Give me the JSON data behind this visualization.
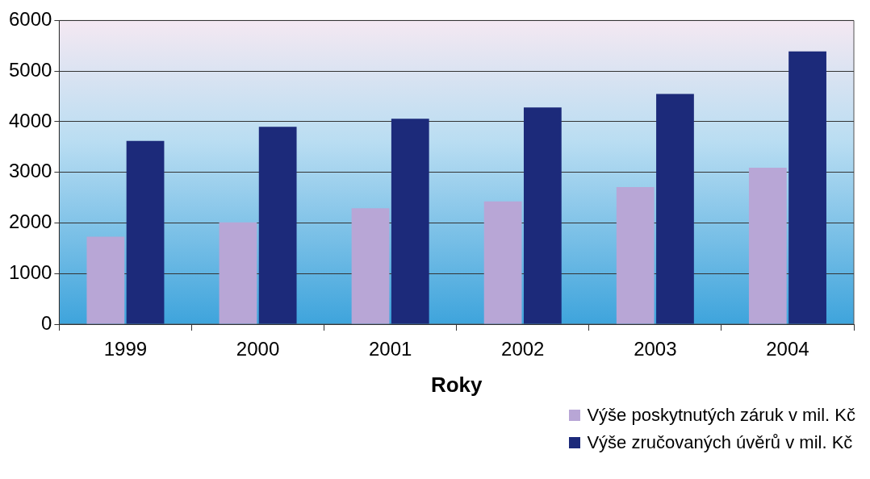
{
  "chart_data": {
    "type": "bar",
    "xlabel": "Roky",
    "categories": [
      "1999",
      "2000",
      "2001",
      "2002",
      "2003",
      "2004"
    ],
    "series": [
      {
        "name": "Výše poskytnutých záruk v mil. Kč",
        "color": "#b8a6d6",
        "values": [
          1730,
          2010,
          2290,
          2425,
          2710,
          3090
        ]
      },
      {
        "name": "Výše zručovaných úvěrů v mil. Kč",
        "color": "#1c2a7a",
        "values": [
          3620,
          3900,
          4060,
          4280,
          4550,
          5390
        ]
      }
    ],
    "ylim": [
      0,
      6000
    ],
    "yticks": [
      0,
      1000,
      2000,
      3000,
      4000,
      5000,
      6000
    ],
    "grid": "y",
    "legend": "bottom right"
  }
}
